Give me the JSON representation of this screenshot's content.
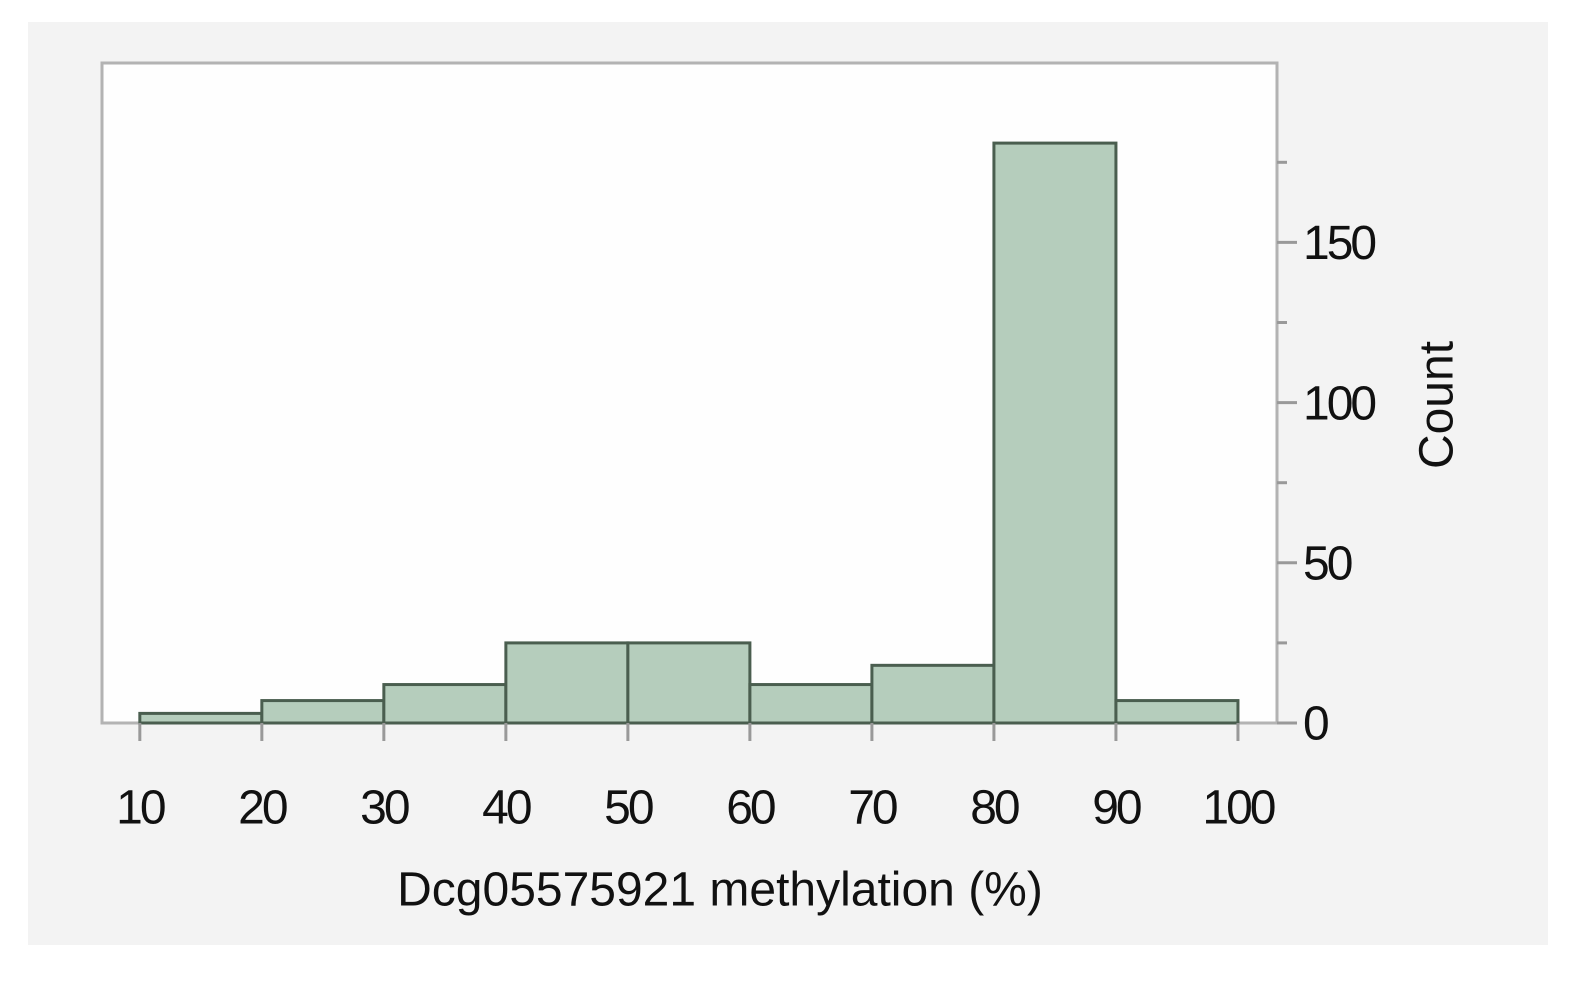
{
  "chart_data": {
    "type": "histogram",
    "x_label": "Dcg05575921 methylation (%)",
    "y_label": "Count",
    "bins": [
      10,
      20,
      30,
      40,
      50,
      60,
      70,
      80,
      90,
      100
    ],
    "values": [
      3,
      7,
      12,
      25,
      25,
      12,
      18,
      181,
      7
    ],
    "color": "#b5cdbc",
    "edge_color": "#4a5e4f",
    "xlim": [
      6.9,
      103.2
    ],
    "xticks": [
      10,
      20,
      30,
      40,
      50,
      60,
      70,
      80,
      90,
      100
    ],
    "ylim": [
      0,
      206
    ],
    "yticks": [
      0,
      50,
      100,
      150
    ],
    "yminorticks": [
      25,
      75,
      125,
      175
    ],
    "y_axis_side": "right"
  }
}
